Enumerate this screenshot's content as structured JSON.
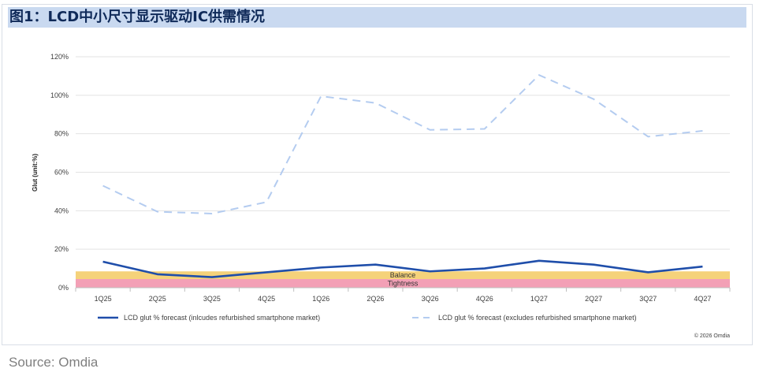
{
  "title": "图1：LCD中小尺寸显示驱动IC供需情况",
  "source": "Source: Omdia",
  "chart_data": {
    "type": "line",
    "ylabel": "Glut (unit:%)",
    "categories": [
      "1Q25",
      "2Q25",
      "3Q25",
      "4Q25",
      "1Q26",
      "2Q26",
      "3Q26",
      "4Q26",
      "1Q27",
      "2Q27",
      "3Q27",
      "4Q27"
    ],
    "y_ticks": [
      "0%",
      "20%",
      "40%",
      "60%",
      "80%",
      "100%",
      "120%"
    ],
    "ylim": [
      0,
      120
    ],
    "grid": true,
    "legend_position": "bottom",
    "series": [
      {
        "name": "LCD glut % forecast (inlcudes refurbished smartphone market)",
        "style": "solid",
        "color": "#1f4eaa",
        "values": [
          13.5,
          7,
          5.5,
          8,
          10.5,
          12,
          8.5,
          10,
          14,
          12,
          8,
          11
        ]
      },
      {
        "name": "LCD glut % forecast (excludes refurbished smartphone market)",
        "style": "dashed",
        "color": "#b4ccf0",
        "values": [
          53,
          39.5,
          38.5,
          44.5,
          99.5,
          96,
          82,
          82.5,
          110.5,
          98,
          78.5,
          81.5
        ]
      }
    ],
    "bands": [
      {
        "label": "Balance",
        "from": 4.5,
        "to": 8.5,
        "color": "#f5d27a"
      },
      {
        "label": "Tightness",
        "from": 0,
        "to": 4.5,
        "color": "#f3a0b6"
      }
    ],
    "copyright": "© 2026 Omdia"
  }
}
